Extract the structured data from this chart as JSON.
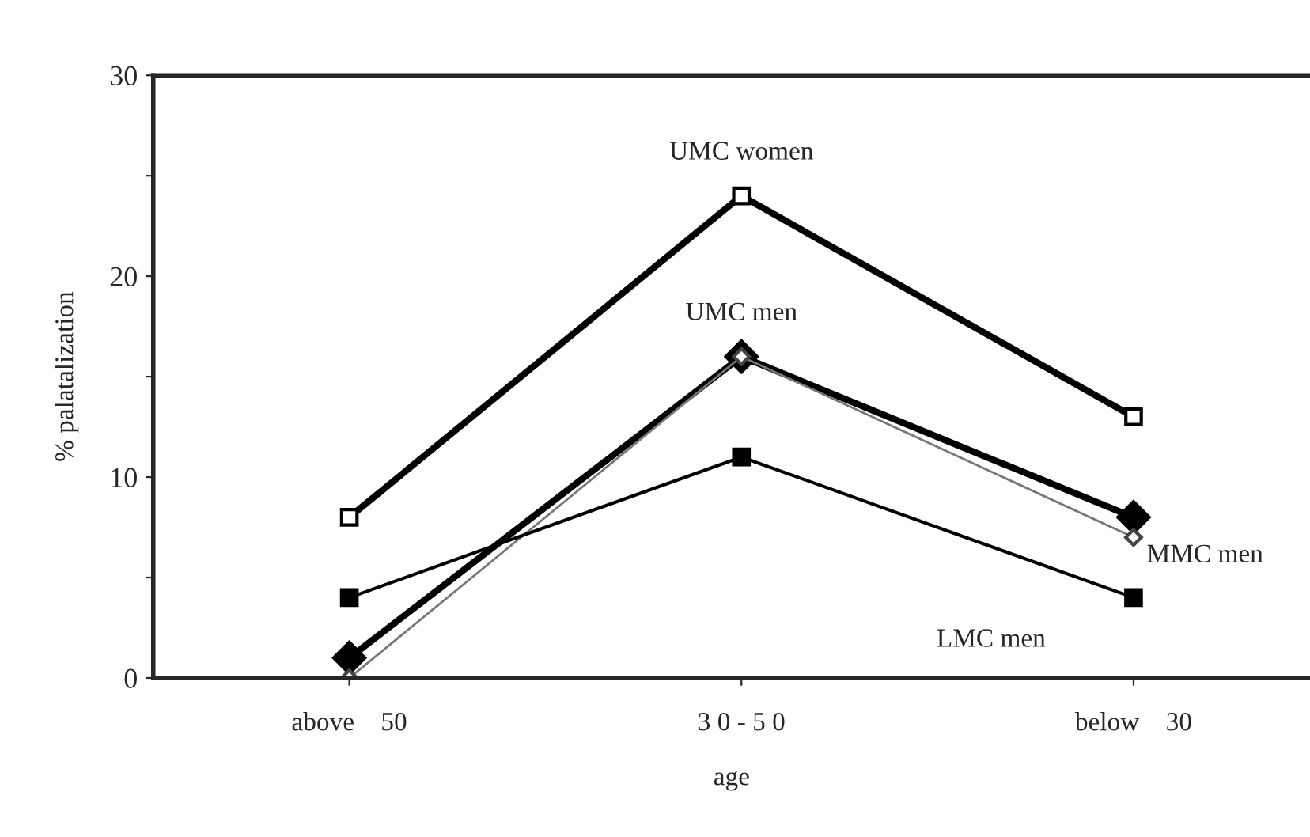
{
  "chart_data": {
    "type": "line",
    "xlabel": "age",
    "ylabel": "% palatalization",
    "categories": [
      "above    50",
      "3 0 - 5 0",
      "below    30"
    ],
    "ylim": [
      0,
      30
    ],
    "yticks": [
      0,
      {
        "value": 5,
        "label": null
      },
      10,
      {
        "value": 15,
        "label": null
      },
      20,
      {
        "value": 25,
        "label": null
      },
      30
    ],
    "grid": false,
    "legend": false,
    "line_style": "solid",
    "series": [
      {
        "name": "UMC women",
        "color": "#000000",
        "marker": "square",
        "values": [
          8,
          24,
          13
        ]
      },
      {
        "name": "UMC men",
        "color": "#000000",
        "marker": "diamond",
        "values": [
          1,
          16,
          8
        ]
      },
      {
        "name": "MMC men",
        "color": "#777777",
        "marker": "diamond",
        "values": [
          0,
          16,
          7
        ]
      },
      {
        "name": "LMC men",
        "color": "#000000",
        "marker": "square",
        "values": [
          4,
          11,
          4
        ]
      }
    ]
  }
}
